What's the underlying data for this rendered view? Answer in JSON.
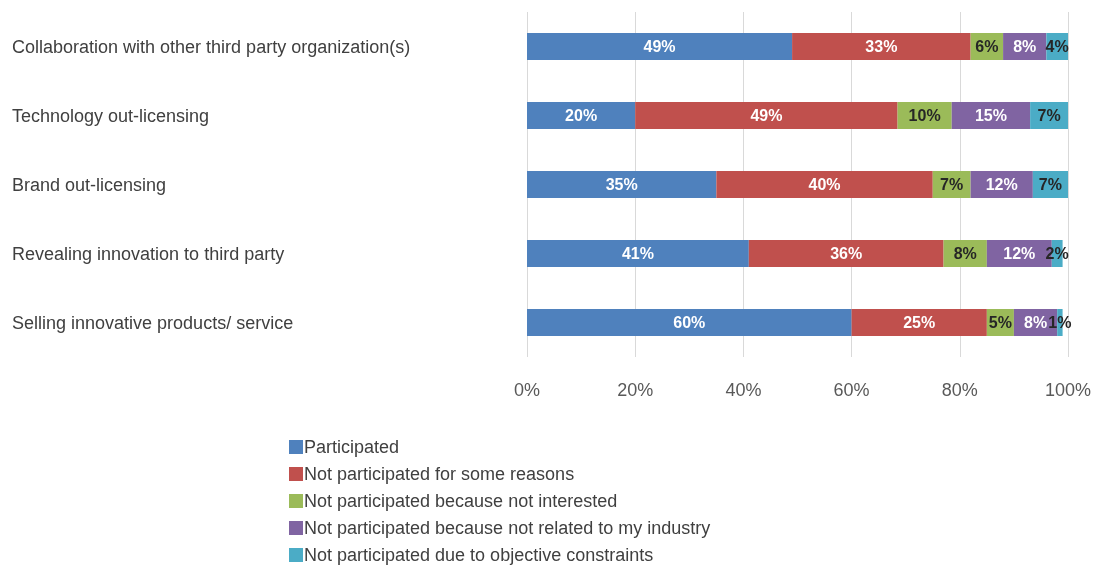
{
  "chart_data": {
    "type": "bar",
    "orientation": "horizontal",
    "stacked": true,
    "grid": "x",
    "legend": "bottom",
    "categories": [
      "Collaboration with other third party organization(s)",
      "Technology out-licensing",
      "Brand out-licensing",
      "Revealing innovation to third party",
      "Selling innovative products/ service"
    ],
    "series": [
      {
        "name": "Participated",
        "color": "#4f81bd",
        "values": [
          49,
          20,
          35,
          41,
          60
        ],
        "value_labels": [
          "49%",
          "20%",
          "35%",
          "41%",
          "60%"
        ]
      },
      {
        "name": "Not participated for some reasons",
        "color": "#c0504d",
        "values": [
          33,
          48.5,
          40,
          36,
          25
        ],
        "value_labels": [
          "33%",
          "49%",
          "40%",
          "36%",
          "25%"
        ]
      },
      {
        "name": "Not participated because not interested",
        "color": "#9bbb59",
        "values": [
          6,
          10,
          7,
          8,
          5
        ],
        "value_labels": [
          "6%",
          "10%",
          "7%",
          "8%",
          "5%"
        ]
      },
      {
        "name": "Not participated because not related to my industry",
        "color": "#8064a2",
        "values": [
          8,
          14.5,
          11.5,
          12,
          8
        ],
        "value_labels": [
          "8%",
          "15%",
          "12%",
          "12%",
          "8%"
        ]
      },
      {
        "name": "Not participated due to objective constraints",
        "color": "#4bacc6",
        "values": [
          4,
          7,
          6.5,
          2,
          1
        ],
        "value_labels": [
          "4%",
          "7%",
          "7%",
          "2%",
          "1%"
        ]
      }
    ],
    "xlim": [
      0,
      100
    ],
    "xticks": [
      {
        "value": 0,
        "label": "0%"
      },
      {
        "value": 20,
        "label": "20%"
      },
      {
        "value": 40,
        "label": "40%"
      },
      {
        "value": 60,
        "label": "60%"
      },
      {
        "value": 80,
        "label": "80%"
      },
      {
        "value": 100,
        "label": "100%"
      }
    ]
  }
}
